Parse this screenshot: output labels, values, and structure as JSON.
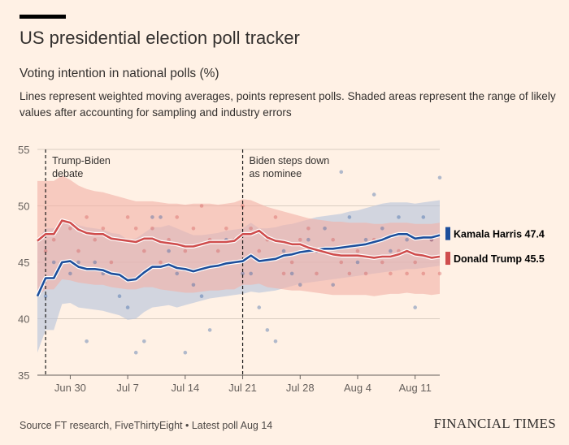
{
  "header": {
    "title": "US presidential election poll tracker",
    "subtitle": "Voting intention in national polls (%)",
    "description": "Lines represent weighted moving averages, points represent polls. Shaded areas represent the range of likely values after accounting for sampling and industry errors"
  },
  "footer": {
    "source": "Source FT research, FiveThirtyEight • Latest poll Aug 14",
    "brand": "FINANCIAL TIMES"
  },
  "chart_data": {
    "type": "line",
    "title": "US presidential election poll tracker",
    "subtitle": "Voting intention in national polls (%)",
    "xlabel": "",
    "ylabel": "",
    "x_range": [
      "2024-06-26",
      "2024-08-14"
    ],
    "ylim": [
      35,
      55
    ],
    "yticks": [
      35,
      40,
      45,
      50,
      55
    ],
    "xticks": [
      {
        "date": "2024-06-30",
        "label": "Jun 30"
      },
      {
        "date": "2024-07-07",
        "label": "Jul 7"
      },
      {
        "date": "2024-07-14",
        "label": "Jul 14"
      },
      {
        "date": "2024-07-21",
        "label": "Jul 21"
      },
      {
        "date": "2024-07-28",
        "label": "Jul 28"
      },
      {
        "date": "2024-08-04",
        "label": "Aug 4"
      },
      {
        "date": "2024-08-11",
        "label": "Aug 11"
      }
    ],
    "grid": true,
    "legend": "direct labels at right end of lines",
    "annotations": [
      {
        "date": "2024-06-27",
        "text": [
          "Trump-Biden",
          "debate"
        ]
      },
      {
        "date": "2024-07-21",
        "text": [
          "Biden steps down",
          "as nominee"
        ]
      }
    ],
    "series": [
      {
        "name": "Kamala Harris",
        "end_label": "Kamala Harris 47.4",
        "color": "#1d4f9c",
        "band_color": "#b7c4dc",
        "x": [
          "2024-06-26",
          "2024-06-27",
          "2024-06-28",
          "2024-06-29",
          "2024-06-30",
          "2024-07-01",
          "2024-07-02",
          "2024-07-03",
          "2024-07-04",
          "2024-07-05",
          "2024-07-06",
          "2024-07-07",
          "2024-07-08",
          "2024-07-09",
          "2024-07-10",
          "2024-07-11",
          "2024-07-12",
          "2024-07-13",
          "2024-07-14",
          "2024-07-15",
          "2024-07-16",
          "2024-07-17",
          "2024-07-18",
          "2024-07-19",
          "2024-07-20",
          "2024-07-21",
          "2024-07-22",
          "2024-07-23",
          "2024-07-24",
          "2024-07-25",
          "2024-07-26",
          "2024-07-27",
          "2024-07-28",
          "2024-07-29",
          "2024-07-30",
          "2024-07-31",
          "2024-08-01",
          "2024-08-02",
          "2024-08-03",
          "2024-08-04",
          "2024-08-05",
          "2024-08-06",
          "2024-08-07",
          "2024-08-08",
          "2024-08-09",
          "2024-08-10",
          "2024-08-11",
          "2024-08-12",
          "2024-08-13",
          "2024-08-14"
        ],
        "values": [
          42.0,
          43.6,
          43.6,
          45.0,
          45.1,
          44.6,
          44.4,
          44.4,
          44.3,
          44.0,
          43.9,
          43.4,
          43.5,
          44.1,
          44.6,
          44.6,
          44.8,
          44.5,
          44.4,
          44.2,
          44.4,
          44.6,
          44.7,
          44.9,
          45.0,
          45.1,
          45.6,
          45.1,
          45.2,
          45.3,
          45.6,
          45.7,
          45.9,
          46.0,
          46.1,
          46.2,
          46.2,
          46.3,
          46.4,
          46.5,
          46.6,
          46.8,
          47.0,
          47.3,
          47.5,
          47.5,
          47.1,
          47.2,
          47.2,
          47.4
        ],
        "lower": [
          37.0,
          39.0,
          39.0,
          41.3,
          41.4,
          41.0,
          40.9,
          40.8,
          40.7,
          40.5,
          40.3,
          39.9,
          40.0,
          40.6,
          41.0,
          41.1,
          41.2,
          41.0,
          41.2,
          41.4,
          41.6,
          41.8,
          41.9,
          42.0,
          42.1,
          42.2,
          42.4,
          42.3,
          42.4,
          42.5,
          42.7,
          42.9,
          43.1,
          43.2,
          43.3,
          43.4,
          43.5,
          43.6,
          43.7,
          43.8,
          43.9,
          44.0,
          44.1,
          44.2,
          44.3,
          44.4,
          44.4,
          44.5,
          44.6,
          44.7
        ],
        "upper": [
          47.0,
          48.0,
          48.0,
          48.7,
          48.7,
          48.3,
          48.1,
          48.0,
          47.9,
          47.6,
          47.5,
          47.0,
          47.1,
          47.6,
          48.1,
          48.1,
          48.3,
          48.0,
          47.7,
          47.4,
          47.4,
          47.5,
          47.6,
          47.8,
          47.9,
          48.0,
          48.5,
          48.0,
          48.0,
          48.1,
          48.3,
          48.4,
          48.6,
          48.8,
          49.0,
          49.1,
          49.2,
          49.3,
          49.5,
          49.6,
          49.8,
          50.0,
          50.2,
          50.3,
          50.3,
          50.3,
          50.2,
          50.3,
          50.4,
          50.5
        ]
      },
      {
        "name": "Donald Trump",
        "end_label": "Donald Trump 45.5",
        "color": "#cf4d4d",
        "band_color": "#f2b1a8",
        "x": [
          "2024-06-26",
          "2024-06-27",
          "2024-06-28",
          "2024-06-29",
          "2024-06-30",
          "2024-07-01",
          "2024-07-02",
          "2024-07-03",
          "2024-07-04",
          "2024-07-05",
          "2024-07-06",
          "2024-07-07",
          "2024-07-08",
          "2024-07-09",
          "2024-07-10",
          "2024-07-11",
          "2024-07-12",
          "2024-07-13",
          "2024-07-14",
          "2024-07-15",
          "2024-07-16",
          "2024-07-17",
          "2024-07-18",
          "2024-07-19",
          "2024-07-20",
          "2024-07-21",
          "2024-07-22",
          "2024-07-23",
          "2024-07-24",
          "2024-07-25",
          "2024-07-26",
          "2024-07-27",
          "2024-07-28",
          "2024-07-29",
          "2024-07-30",
          "2024-07-31",
          "2024-08-01",
          "2024-08-02",
          "2024-08-03",
          "2024-08-04",
          "2024-08-05",
          "2024-08-06",
          "2024-08-07",
          "2024-08-08",
          "2024-08-09",
          "2024-08-10",
          "2024-08-11",
          "2024-08-12",
          "2024-08-13",
          "2024-08-14"
        ],
        "values": [
          46.9,
          47.5,
          47.5,
          48.7,
          48.5,
          47.9,
          47.6,
          47.5,
          47.5,
          47.1,
          47.0,
          46.9,
          46.8,
          47.1,
          47.1,
          46.8,
          46.7,
          46.6,
          46.4,
          46.4,
          46.6,
          46.8,
          46.8,
          46.8,
          46.9,
          47.5,
          47.5,
          47.8,
          47.2,
          46.9,
          46.8,
          46.6,
          46.6,
          46.3,
          46.1,
          45.9,
          45.7,
          45.6,
          45.6,
          45.6,
          45.5,
          45.4,
          45.5,
          45.5,
          45.7,
          46.0,
          45.7,
          45.6,
          45.4,
          45.5
        ],
        "lower": [
          42.0,
          42.6,
          42.6,
          43.5,
          43.4,
          43.2,
          43.1,
          43.0,
          43.0,
          42.8,
          42.7,
          42.6,
          42.6,
          42.8,
          42.8,
          42.6,
          42.5,
          42.4,
          42.3,
          42.3,
          42.4,
          42.5,
          42.5,
          42.6,
          42.6,
          43.0,
          43.0,
          43.1,
          42.8,
          42.7,
          42.6,
          42.5,
          42.5,
          42.4,
          42.3,
          42.2,
          42.1,
          42.1,
          42.1,
          42.1,
          42.1,
          42.0,
          42.1,
          42.2,
          42.2,
          42.3,
          42.2,
          42.2,
          42.1,
          42.2
        ],
        "upper": [
          52.2,
          52.2,
          52.2,
          52.7,
          52.3,
          51.8,
          51.5,
          51.3,
          51.2,
          51.0,
          50.8,
          50.6,
          50.4,
          50.4,
          50.4,
          50.3,
          50.2,
          50.2,
          50.1,
          50.2,
          50.2,
          50.2,
          50.1,
          50.2,
          50.3,
          50.6,
          50.5,
          50.2,
          49.9,
          49.7,
          49.5,
          49.3,
          49.1,
          48.9,
          48.8,
          48.7,
          48.6,
          48.6,
          48.5,
          48.5,
          48.5,
          48.4,
          48.4,
          48.5,
          48.5,
          48.5,
          48.4,
          48.4,
          48.4,
          48.5
        ]
      }
    ],
    "polls": [
      {
        "series": "Kamala Harris",
        "points": [
          [
            "2024-06-27",
            42
          ],
          [
            "2024-06-28",
            45
          ],
          [
            "2024-06-29",
            45
          ],
          [
            "2024-06-30",
            44
          ],
          [
            "2024-07-01",
            45
          ],
          [
            "2024-07-02",
            38
          ],
          [
            "2024-07-03",
            45
          ],
          [
            "2024-07-04",
            44
          ],
          [
            "2024-07-06",
            42
          ],
          [
            "2024-07-07",
            41
          ],
          [
            "2024-07-08",
            37
          ],
          [
            "2024-07-09",
            38
          ],
          [
            "2024-07-10",
            49
          ],
          [
            "2024-07-11",
            49
          ],
          [
            "2024-07-12",
            46
          ],
          [
            "2024-07-13",
            44
          ],
          [
            "2024-07-14",
            37
          ],
          [
            "2024-07-15",
            43
          ],
          [
            "2024-07-16",
            42
          ],
          [
            "2024-07-17",
            39
          ],
          [
            "2024-07-19",
            47
          ],
          [
            "2024-07-21",
            44
          ],
          [
            "2024-07-22",
            44
          ],
          [
            "2024-07-23",
            41
          ],
          [
            "2024-07-24",
            39
          ],
          [
            "2024-07-25",
            38
          ],
          [
            "2024-07-26",
            46
          ],
          [
            "2024-07-27",
            44
          ],
          [
            "2024-07-28",
            43
          ],
          [
            "2024-07-29",
            47
          ],
          [
            "2024-07-30",
            46
          ],
          [
            "2024-07-31",
            48
          ],
          [
            "2024-08-01",
            43
          ],
          [
            "2024-08-02",
            53
          ],
          [
            "2024-08-03",
            49
          ],
          [
            "2024-08-04",
            45
          ],
          [
            "2024-08-05",
            47
          ],
          [
            "2024-08-06",
            51
          ],
          [
            "2024-08-07",
            48
          ],
          [
            "2024-08-08",
            46
          ],
          [
            "2024-08-09",
            49
          ],
          [
            "2024-08-10",
            47
          ],
          [
            "2024-08-11",
            41
          ],
          [
            "2024-08-12",
            49
          ],
          [
            "2024-08-13",
            47
          ],
          [
            "2024-08-14",
            52.5
          ]
        ]
      },
      {
        "series": "Donald Trump",
        "points": [
          [
            "2024-06-27",
            46
          ],
          [
            "2024-06-28",
            47
          ],
          [
            "2024-06-29",
            45
          ],
          [
            "2024-06-30",
            48
          ],
          [
            "2024-07-01",
            46
          ],
          [
            "2024-07-02",
            49
          ],
          [
            "2024-07-03",
            47
          ],
          [
            "2024-07-04",
            48
          ],
          [
            "2024-07-05",
            45
          ],
          [
            "2024-07-06",
            47
          ],
          [
            "2024-07-07",
            49
          ],
          [
            "2024-07-08",
            48
          ],
          [
            "2024-07-09",
            46
          ],
          [
            "2024-07-10",
            48
          ],
          [
            "2024-07-11",
            45
          ],
          [
            "2024-07-12",
            47
          ],
          [
            "2024-07-13",
            49
          ],
          [
            "2024-07-14",
            46
          ],
          [
            "2024-07-15",
            48
          ],
          [
            "2024-07-16",
            50
          ],
          [
            "2024-07-17",
            47
          ],
          [
            "2024-07-18",
            46
          ],
          [
            "2024-07-19",
            48
          ],
          [
            "2024-07-20",
            47
          ],
          [
            "2024-07-21",
            50
          ],
          [
            "2024-07-22",
            48
          ],
          [
            "2024-07-23",
            46
          ],
          [
            "2024-07-24",
            47
          ],
          [
            "2024-07-25",
            49
          ],
          [
            "2024-07-26",
            44
          ],
          [
            "2024-07-27",
            45
          ],
          [
            "2024-07-28",
            47
          ],
          [
            "2024-07-29",
            48
          ],
          [
            "2024-07-30",
            44
          ],
          [
            "2024-07-31",
            46
          ],
          [
            "2024-08-01",
            47
          ],
          [
            "2024-08-02",
            45
          ],
          [
            "2024-08-03",
            44
          ],
          [
            "2024-08-04",
            46
          ],
          [
            "2024-08-05",
            44
          ],
          [
            "2024-08-06",
            47
          ],
          [
            "2024-08-07",
            45
          ],
          [
            "2024-08-08",
            44
          ],
          [
            "2024-08-09",
            46
          ],
          [
            "2024-08-10",
            44
          ],
          [
            "2024-08-11",
            45
          ],
          [
            "2024-08-12",
            44
          ],
          [
            "2024-08-13",
            47
          ],
          [
            "2024-08-14",
            44
          ]
        ]
      }
    ]
  }
}
